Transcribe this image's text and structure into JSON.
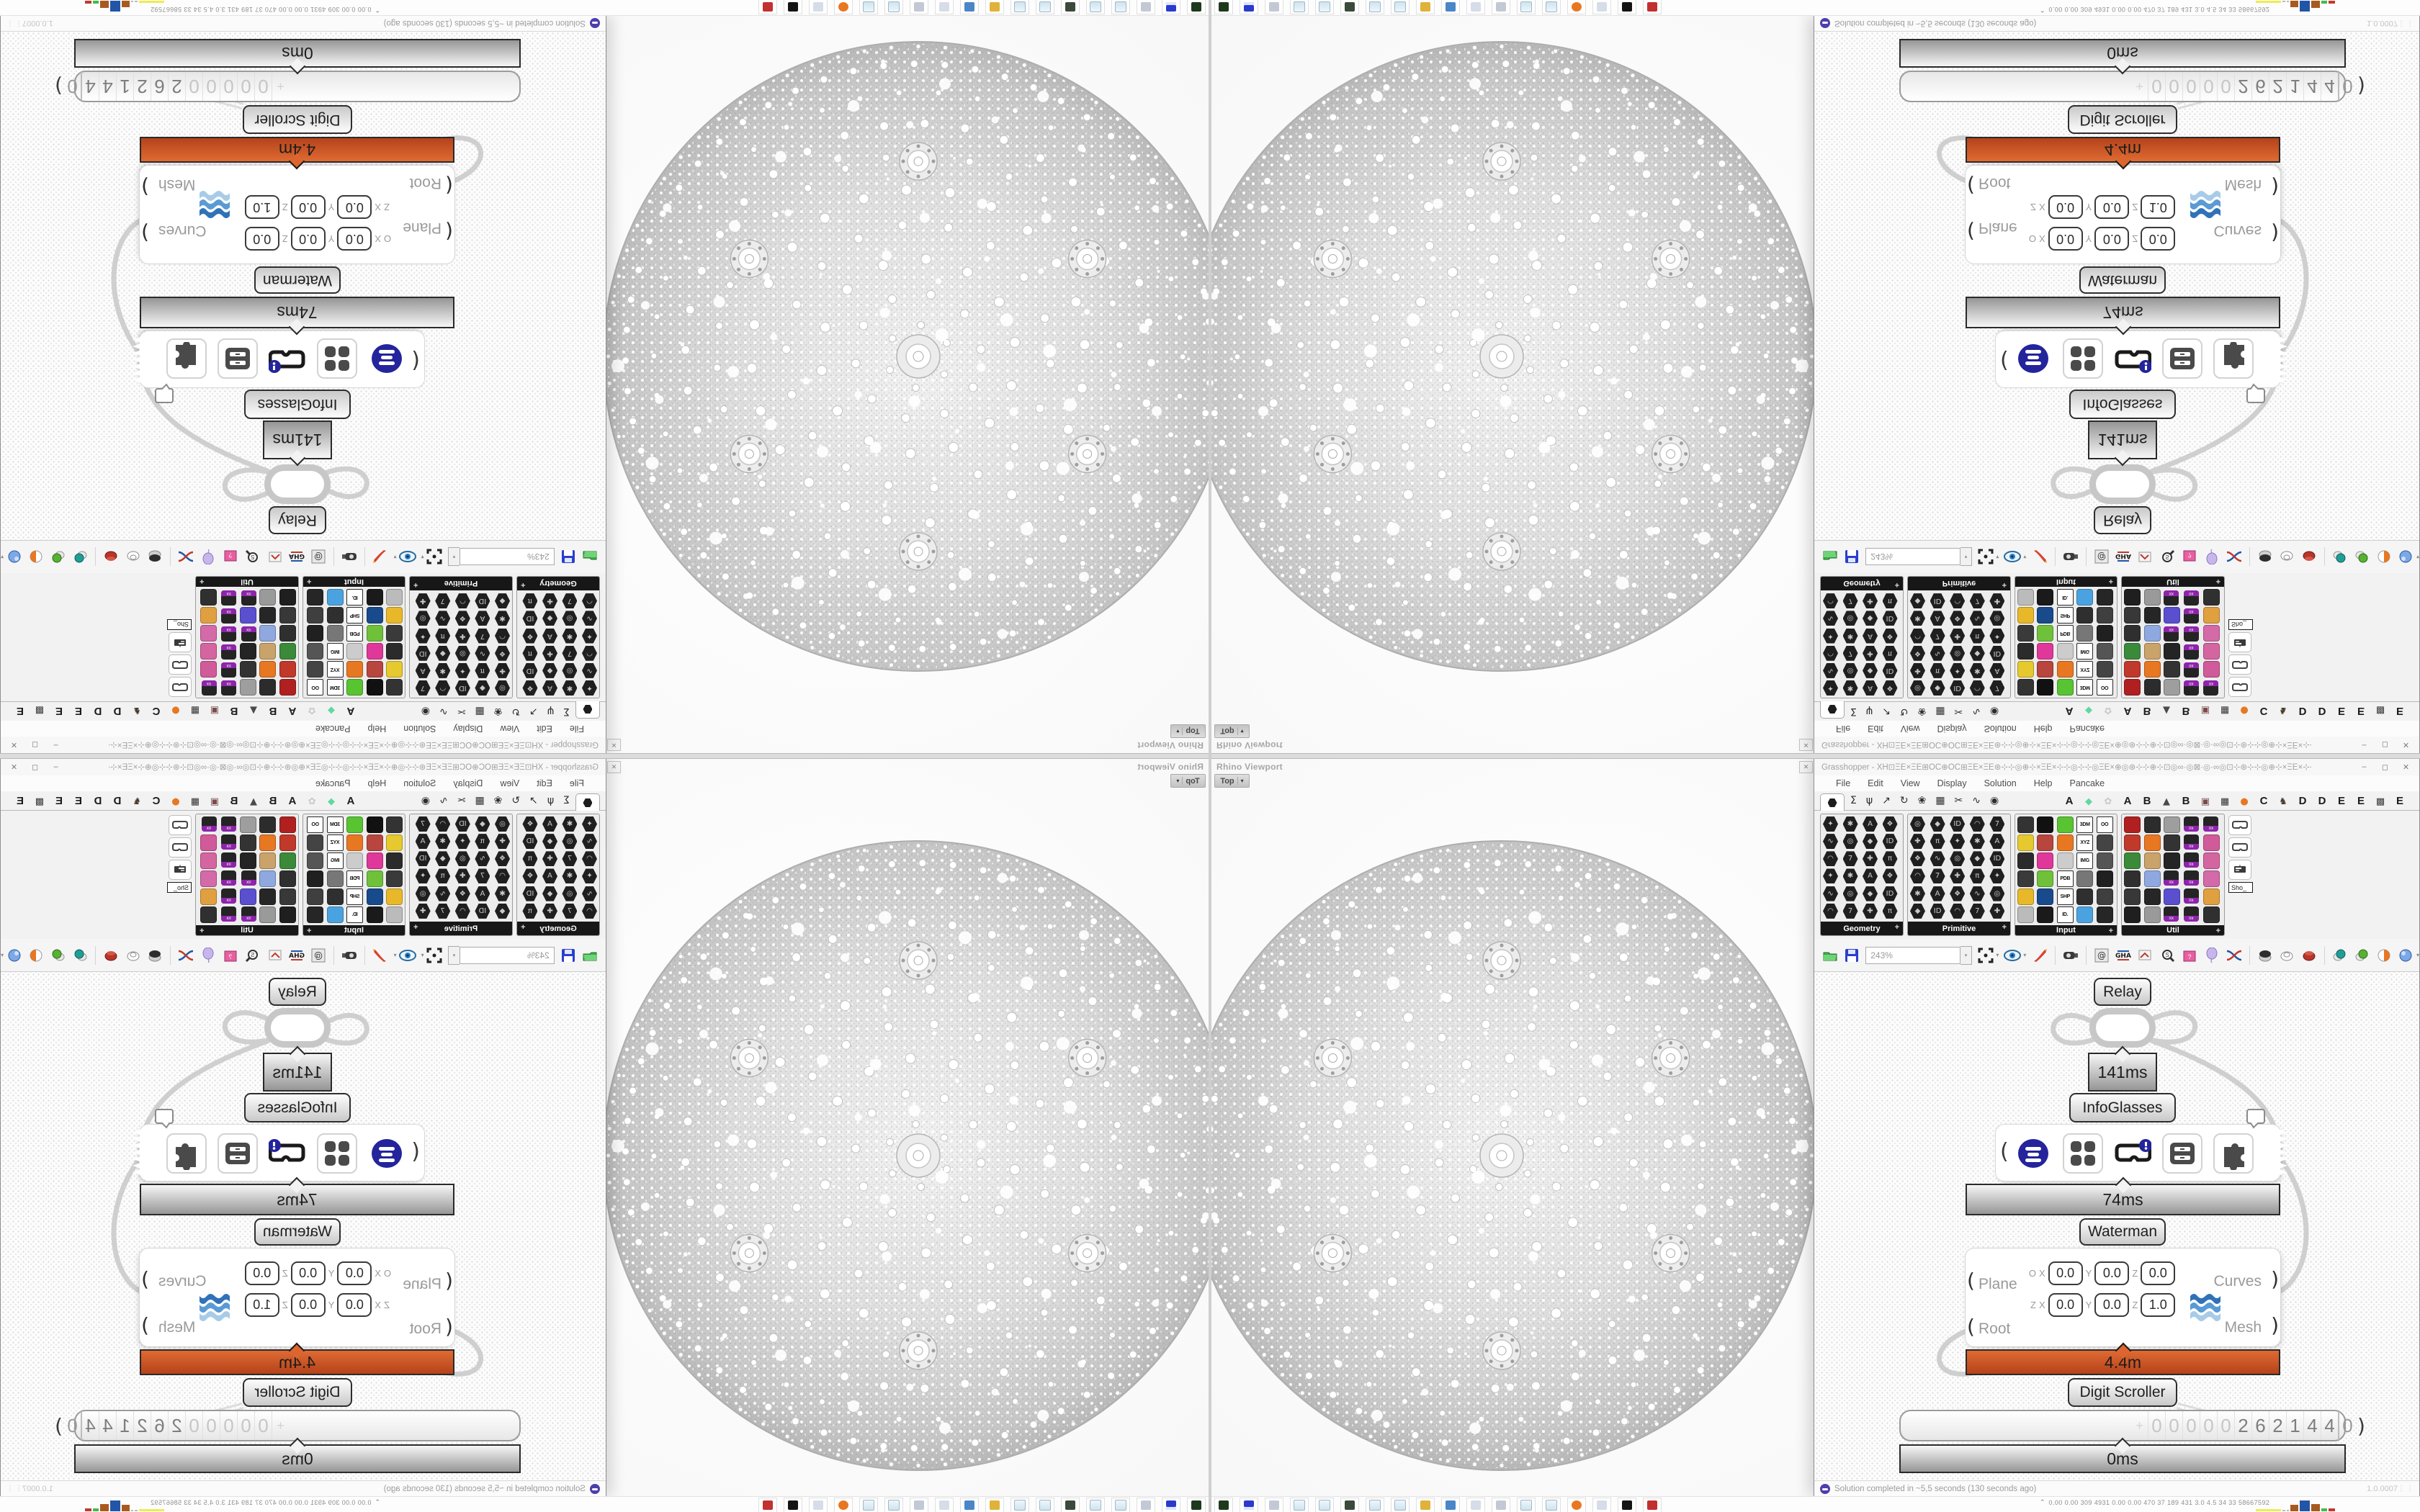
{
  "app": {
    "title": "Grasshopper - XH⊡ΞΕ×ΞΕ⊞ΟC⊕ΟC⊞ΞΕ×ΞΕ⊛⊹⊹◎⊕⊹×ΞΕ×⊹⊹◎⊹⊹◎ΞΕ×⊕◎⊛⊹⊹⊕⊹⊡◎∞·◎⊠·◎·∞◎⊡⊹⊛⊹⊹◎⊕⊹×ΞΕ×⊹⊹◎...",
    "buttons": [
      "–",
      "◻",
      "✕"
    ]
  },
  "menu": [
    "File",
    "Edit",
    "View",
    "Display",
    "Solution",
    "Help",
    "Pancake"
  ],
  "tab_icons": [
    "Σ",
    "ψ",
    "↗",
    "↻",
    "❀",
    "▦",
    "✂",
    "∿",
    "◉"
  ],
  "letter_tabs": [
    {
      "t": "A"
    },
    {
      "i": "gem"
    },
    {
      "i": "flower"
    },
    {
      "t": "A"
    },
    {
      "t": "B"
    },
    {
      "i": "mountain"
    },
    {
      "t": "B"
    },
    {
      "i": "shield"
    },
    {
      "i": "grid"
    },
    {
      "i": "dot-orange"
    },
    {
      "t": "C"
    },
    {
      "i": "bird"
    },
    {
      "t": "D"
    },
    {
      "t": "D"
    },
    {
      "t": "E"
    },
    {
      "t": "E"
    },
    {
      "i": "grid-dots"
    },
    {
      "t": "E"
    }
  ],
  "palettes": [
    {
      "label": "Geometry",
      "cols": 4,
      "width": 116,
      "cells": [
        "hex",
        "hex",
        "hex",
        "hex",
        "hex",
        "hex",
        "hex",
        "hex",
        "hex",
        "hex",
        "hex",
        "hex",
        "hex",
        "hex",
        "hex",
        "hex",
        "hex",
        "hex",
        "hex",
        "hex",
        "hex",
        "hex",
        "hex",
        "hex"
      ]
    },
    {
      "label": "Primitive",
      "cols": 5,
      "width": 144,
      "cells": [
        "hex",
        "hex",
        "hex",
        "hex",
        "hex",
        "hex",
        "hex",
        "hex",
        "hex",
        "hex",
        "hex",
        "hex",
        "hex",
        "hex",
        "hex",
        "hex",
        "hex",
        "hex",
        "hex",
        "hex",
        "hex",
        "hex",
        "hex",
        "hex",
        "hex",
        "hex",
        "hex",
        "hex",
        "hex",
        "hex"
      ]
    },
    {
      "label": "Input",
      "cols": 5,
      "width": 143,
      "cells": [
        "sq:#333333",
        "sq:#111111",
        "sq:#58c432",
        "ticket:3DM",
        "ticket:OO",
        "sq:#e6c92e",
        "sq:#b8453e",
        "sq:#e87722",
        "ticket:XYZ",
        "sq:#444444",
        "sq:#2b2b2b",
        "sq:#e0379b",
        "sq:#cccccc",
        "ticket:IMG",
        "sq:#555555",
        "sq:#3a3a3a",
        "sq:#6fc13a",
        "ticket:PDB",
        "sq:#777777",
        "sq:#202020",
        "sq:#e8b82a",
        "sq:#184a8c",
        "ticket:SHP",
        "sq:#2f2f2f",
        "sq:#3f3f3f",
        "sq:#bbbbbb",
        "sq:#1a1a1a",
        "ticket:ID.",
        "sq:#4aa3e0",
        "sq:#262626"
      ]
    },
    {
      "label": "Util",
      "cols": 5,
      "width": 144,
      "cells": [
        "sq:#b02020",
        "sq:#2c2c2c",
        "sq:#9e9e9e",
        "badge",
        "badge",
        "sq:#c0392b",
        "sq:#e87722",
        "sq:#333333",
        "badge",
        "sq:#d05a9a",
        "sq:#3a8a3a",
        "sq:#caa36a",
        "sq:#242424",
        "badge",
        "sq:#d465a0",
        "sq:#2f2f2f",
        "sq:#8fa8e0",
        "badge",
        "badge",
        "sq:#d46aa8",
        "sq:#383838",
        "sq:#262626",
        "sq:#5a4fcf",
        "badge",
        "sq:#e0a040",
        "sq:#1f1f1f",
        "sq:#9a9a9a",
        "badge",
        "badge",
        "sq:#303030"
      ]
    }
  ],
  "side_panel": {
    "tooltip": "Sho_",
    "chips": [
      "goggles",
      "goggles",
      "board"
    ]
  },
  "toolbar": {
    "zoom": "243%"
  },
  "viewport": {
    "title": "Rhino Viewport",
    "button": "Top"
  },
  "canvas": {
    "relay_label": "Relay",
    "info_label": "InfoGlasses",
    "waterman_label": "Waterman",
    "scroller_label": "Digit Scroller",
    "timers": {
      "relay": "141ms",
      "info": "74ms",
      "size": "4.4m",
      "scroll": "0ms"
    },
    "widget_icons": [
      "list-navy",
      "grid-squares",
      "goggles-badge",
      "drawers",
      "puzzle"
    ],
    "waterman": {
      "in1": "Plane",
      "in2": "Root",
      "out1": "Curves",
      "out2": "Mesh",
      "row1": {
        "p": "O",
        "vals": [
          "0.0",
          "0.0",
          "0.0"
        ]
      },
      "row2": {
        "p": "Z",
        "vals": [
          "0.0",
          "0.0",
          "1.0"
        ]
      },
      "axes": [
        "X",
        "Y",
        "Z"
      ]
    },
    "digits": {
      "sign": "+",
      "faint": [
        "0",
        "0",
        "0",
        "0",
        "0"
      ],
      "main": [
        "2",
        "6",
        "2",
        "1",
        "4",
        "4"
      ],
      "last": "0"
    }
  },
  "status": {
    "text": "Solution completed in ~5,5 seconds (130 seconds ago)",
    "version": "1.0.0007"
  },
  "taskbar": {
    "icons": [
      "device-green",
      "floppy-64",
      "printer",
      "notepad",
      "notepad",
      "monitor-green",
      "notepad",
      "notepad",
      "folder-yellow",
      "display-blue",
      "calculator",
      "printer",
      "notepad",
      "notepad",
      "firefox",
      "calculator",
      "media-black",
      "badge-red"
    ],
    "icon_colors": [
      "#1d3a1d",
      "#2a3acc",
      "#c3c9d4",
      "#cfe4ef",
      "#cfe4ef",
      "#3b4a3b",
      "#cfe4ef",
      "#cfe4ef",
      "#e0b23a",
      "#4a86c8",
      "#d6dde8",
      "#c3c9d4",
      "#cfe4ef",
      "#cfe4ef",
      "#e87722",
      "#d6dde8",
      "#141414",
      "#c23030"
    ],
    "chevron": "⌃",
    "stats": "0.00 0.00  309  4931 0.00  0.00  470   37   189  431   3.0   4.5   34    33  58667592",
    "chart": [
      {
        "w": 40,
        "h": 3,
        "c": "#ecec52"
      },
      {
        "w": 4,
        "h": 2,
        "c": "#bcbcbc"
      },
      {
        "w": 4,
        "h": 2,
        "c": "#bcbcbc"
      },
      {
        "w": 12,
        "h": 9,
        "c": "#a85a1e"
      },
      {
        "w": 16,
        "h": 15,
        "c": "#2255a8"
      },
      {
        "w": 14,
        "h": 10,
        "c": "#a85a1e"
      },
      {
        "w": 9,
        "h": 4,
        "c": "#46b84a"
      },
      {
        "w": 10,
        "h": 4,
        "c": "#c03a2e"
      }
    ]
  },
  "icons": {
    "caret_down": "▾",
    "grip": "⋮⋮",
    "close": "✕"
  }
}
